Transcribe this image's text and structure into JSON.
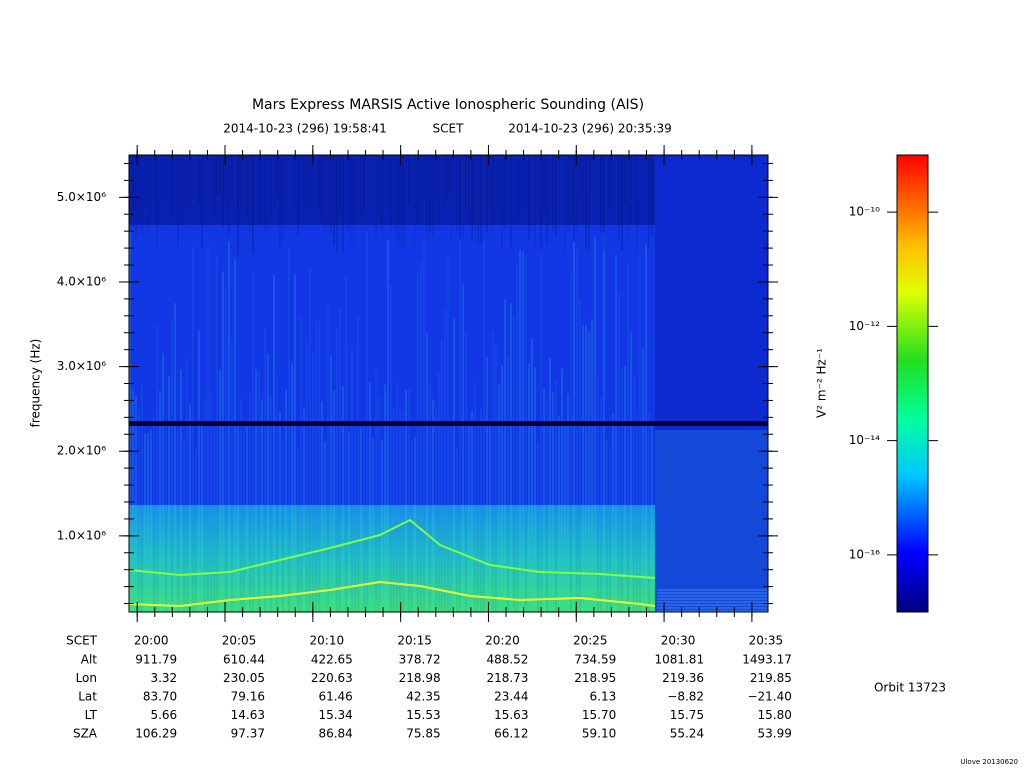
{
  "chart_data": {
    "type": "spectrogram",
    "title": "Mars Express MARSIS Active Ionospheric Sounding (AIS)",
    "subtitle": [
      "2014-10-23 (296) 19:58:41",
      "SCET",
      "2014-10-23 (296) 20:35:39"
    ],
    "y_label": "frequency (Hz)",
    "xlim": [
      "19:59:32",
      "20:35:55"
    ],
    "xticks": [
      "20:00",
      "20:05",
      "20:10",
      "20:15",
      "20:20",
      "20:25",
      "20:30",
      "20:35"
    ],
    "ylim": [
      100000,
      5500000
    ],
    "yticks": [
      {
        "value": 1000000,
        "label": "1.0×10⁶"
      },
      {
        "value": 2000000,
        "label": "2.0×10⁶"
      },
      {
        "value": 3000000,
        "label": "3.0×10⁶"
      },
      {
        "value": 4000000,
        "label": "4.0×10⁶"
      },
      {
        "value": 5000000,
        "label": "5.0×10⁶"
      }
    ],
    "colorbar": {
      "label": "V² m⁻² Hz⁻¹",
      "log_scale": true,
      "zlim": [
        1e-17,
        1e-09
      ],
      "zticks": [
        {
          "value": 1e-10,
          "label": "10⁻¹⁰"
        },
        {
          "value": 1e-12,
          "label": "10⁻¹²"
        },
        {
          "value": 1e-14,
          "label": "10⁻¹⁴"
        },
        {
          "value": 1e-16,
          "label": "10⁻¹⁶"
        }
      ]
    },
    "ephemeris": {
      "time_label": "SCET",
      "rows": [
        {
          "label": "Alt",
          "values": [
            "911.79",
            "610.44",
            "422.65",
            "378.72",
            "488.52",
            "734.59",
            "1081.81",
            "1493.17"
          ]
        },
        {
          "label": "Lon",
          "values": [
            "3.32",
            "230.05",
            "220.63",
            "218.98",
            "218.73",
            "218.95",
            "219.36",
            "219.85"
          ]
        },
        {
          "label": "Lat",
          "values": [
            "83.70",
            "79.16",
            "61.46",
            "42.35",
            "23.44",
            "6.13",
            "−8.82",
            "−21.40"
          ]
        },
        {
          "label": "LT",
          "values": [
            "5.66",
            "14.63",
            "15.34",
            "15.53",
            "15.63",
            "15.70",
            "15.75",
            "15.80"
          ]
        },
        {
          "label": "SZA",
          "values": [
            "106.29",
            "97.37",
            "86.84",
            "75.85",
            "66.12",
            "59.10",
            "55.24",
            "53.99"
          ]
        }
      ]
    },
    "orbit": "Orbit 13723",
    "version": "Ulove 20130620"
  }
}
